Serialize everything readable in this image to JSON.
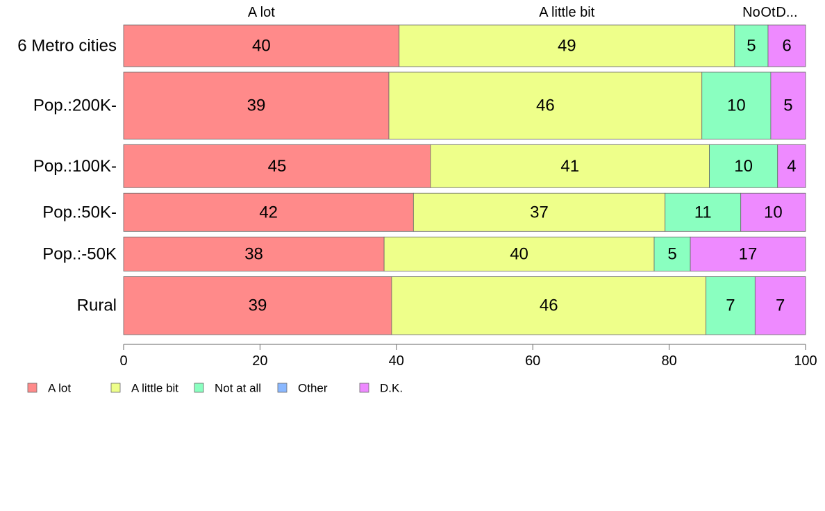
{
  "chart_data": {
    "type": "bar",
    "orientation": "horizontal",
    "stacked": true,
    "percent": true,
    "categories": [
      "6 Metro cities",
      "Pop.:200K-",
      "Pop.:100K-",
      "Pop.:50K-",
      "Pop.:-50K",
      "Rural"
    ],
    "category_widths": [
      61,
      98,
      63,
      56,
      50,
      85
    ],
    "series": [
      {
        "name": "A lot",
        "color": "#FF8A8A",
        "values": [
          40.4,
          38.9,
          45.0,
          42.5,
          38.2,
          39.3
        ]
      },
      {
        "name": "A little bit",
        "color": "#EEFF8A",
        "values": [
          49.2,
          45.9,
          40.9,
          36.9,
          39.6,
          46.1
        ]
      },
      {
        "name": "Not at all",
        "color": "#8AFFC0",
        "values": [
          4.9,
          10.1,
          10.0,
          11.1,
          5.3,
          7.2
        ]
      },
      {
        "name": "Other",
        "color": "#8AB8FF",
        "values": [
          0,
          0,
          0,
          0,
          0,
          0
        ]
      },
      {
        "name": "D.K.",
        "color": "#EE8AFF",
        "values": [
          5.5,
          5.1,
          4.1,
          9.5,
          16.9,
          7.4
        ]
      }
    ],
    "data_labels": [
      [
        "40",
        "49",
        "5",
        "",
        "6"
      ],
      [
        "39",
        "46",
        "10",
        "",
        "5"
      ],
      [
        "45",
        "41",
        "10",
        "",
        "4"
      ],
      [
        "42",
        "37",
        "11",
        "",
        "10"
      ],
      [
        "38",
        "40",
        "5",
        "",
        "17"
      ],
      [
        "39",
        "46",
        "7",
        "",
        "7"
      ]
    ],
    "top_labels": [
      "A lot",
      "A little bit",
      "No",
      "Ot",
      "D..."
    ],
    "xlim": [
      0,
      100
    ],
    "xticks": [
      0,
      20,
      40,
      60,
      80,
      100
    ],
    "grid": false,
    "legend": {
      "position": "bottom-left",
      "entries": [
        "A lot",
        "A little bit",
        "Not at all",
        "Other",
        "D.K."
      ]
    },
    "title": "",
    "xlabel": "",
    "ylabel": ""
  }
}
